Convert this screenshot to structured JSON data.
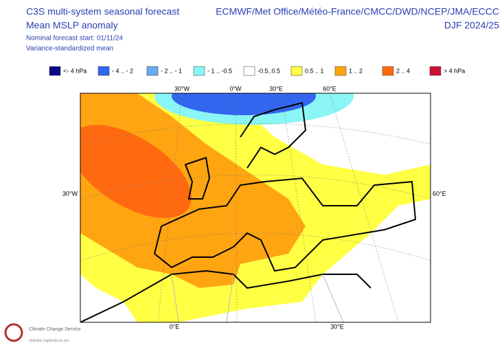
{
  "header": {
    "title": "C3S multi-system seasonal forecast",
    "subtitle": "Mean MSLP anomaly",
    "start": "Nominal forecast start: 01/11/24",
    "method": "Variance-standardized mean",
    "centres": "ECMWF/Met Office/Météo-France/CMCC/DWD/NCEP/JMA/ECCC",
    "season": "DJF 2024/25"
  },
  "legend": {
    "items": [
      {
        "label": "<- 4 hPa",
        "color": "#0a0a8c"
      },
      {
        "label": "- 4 .. - 2",
        "color": "#3366ee"
      },
      {
        "label": "- 2 .. - 1",
        "color": "#6aaaf2"
      },
      {
        "label": "- 1 .. -0.5",
        "color": "#8af5f5"
      },
      {
        "label": "-0.5..0.5",
        "color": "#ffffff"
      },
      {
        "label": "0.5 .. 1",
        "color": "#ffff44"
      },
      {
        "label": "1 .. 2",
        "color": "#ffa511"
      },
      {
        "label": "2 .. 4",
        "color": "#ff6a10"
      },
      {
        "label": "> 4 hPa",
        "color": "#cc1133"
      }
    ]
  },
  "map": {
    "labels": [
      "30°W",
      "0°W",
      "30°E",
      "60°E",
      "30°W",
      "60°E",
      "0°E",
      "30°E"
    ]
  },
  "logo": {
    "name": "Climate Change Service",
    "url": "climate.copernicus.eu"
  }
}
